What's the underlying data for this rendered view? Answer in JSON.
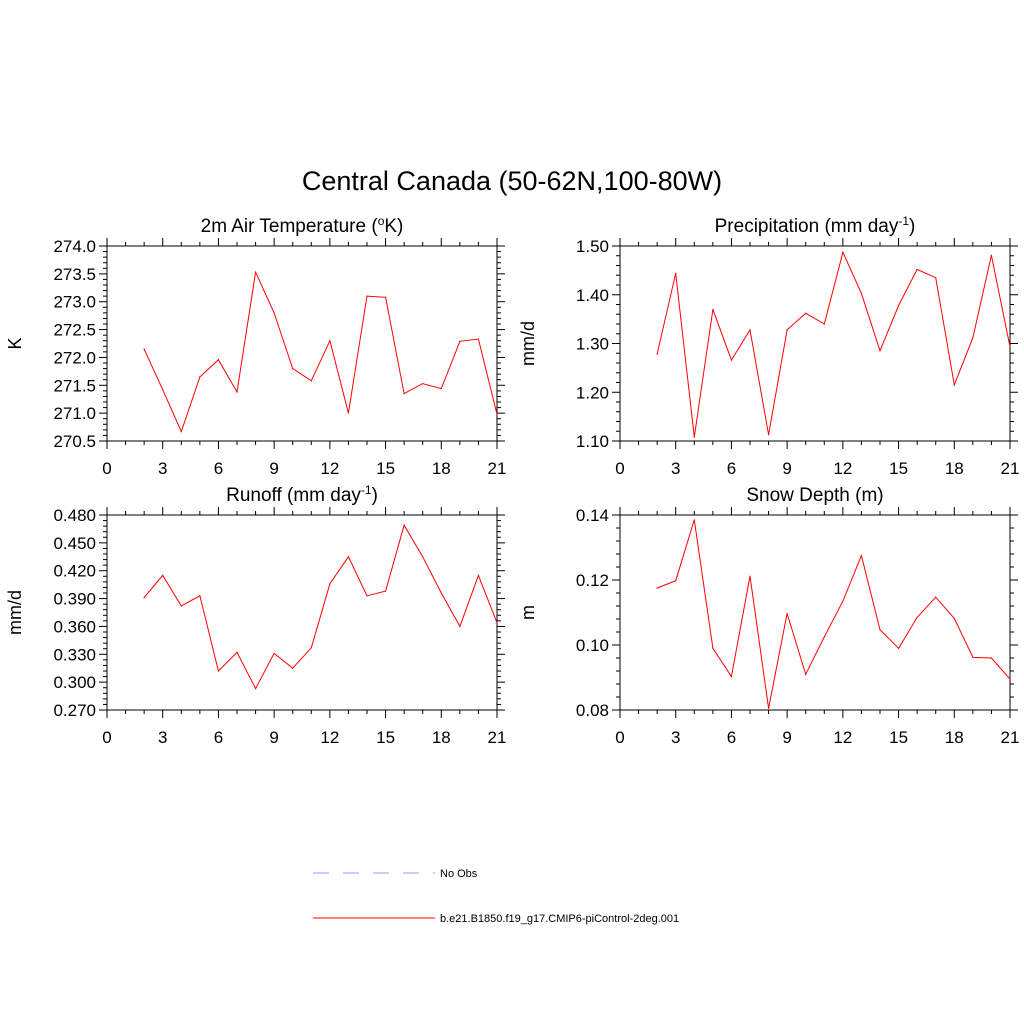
{
  "figure_title": "Central Canada (50-62N,100-80W)",
  "legend": [
    {
      "label": "No Obs",
      "color": "#9999ff",
      "style": "dashed"
    },
    {
      "label": "b.e21.B1850.f19_g17.CMIP6-piControl-2deg.001",
      "color": "#ff0000",
      "style": "solid"
    }
  ],
  "chart_data": [
    {
      "type": "line",
      "title_pre": "2m Air Temperature (",
      "title_sup": "o",
      "title_post": "K)",
      "ylabel": "K",
      "xlim": [
        0,
        21
      ],
      "ylim": [
        270.5,
        274.0
      ],
      "x_ticks": [
        "0",
        "3",
        "6",
        "9",
        "12",
        "15",
        "18",
        "21"
      ],
      "y_ticks": [
        "270.5",
        "271.0",
        "271.5",
        "272.0",
        "272.5",
        "273.0",
        "273.5",
        "274.0"
      ],
      "series": [
        {
          "name": "b.e21.B1850.f19_g17.CMIP6-piControl-2deg.001",
          "color": "#ff0000",
          "x": [
            2,
            3,
            4,
            5,
            6,
            7,
            8,
            9,
            10,
            11,
            12,
            13,
            14,
            15,
            16,
            17,
            18,
            19,
            20,
            21
          ],
          "values": [
            272.15,
            271.42,
            270.67,
            271.65,
            271.96,
            271.38,
            273.53,
            272.8,
            271.8,
            271.58,
            272.3,
            271.0,
            273.1,
            273.08,
            271.35,
            271.53,
            271.44,
            272.29,
            272.33,
            270.98
          ]
        }
      ]
    },
    {
      "type": "line",
      "title_pre": "Precipitation (mm day",
      "title_sup": "-1",
      "title_post": ")",
      "ylabel": "mm/d",
      "xlim": [
        0,
        21
      ],
      "ylim": [
        1.1,
        1.5
      ],
      "x_ticks": [
        "0",
        "3",
        "6",
        "9",
        "12",
        "15",
        "18",
        "21"
      ],
      "y_ticks": [
        "1.10",
        "1.20",
        "1.30",
        "1.40",
        "1.50"
      ],
      "series": [
        {
          "name": "b.e21.B1850.f19_g17.CMIP6-piControl-2deg.001",
          "color": "#ff0000",
          "x": [
            2,
            3,
            4,
            5,
            6,
            7,
            8,
            9,
            10,
            11,
            12,
            13,
            14,
            15,
            16,
            17,
            18,
            19,
            20,
            21
          ],
          "values": [
            1.278,
            1.444,
            1.108,
            1.37,
            1.266,
            1.328,
            1.113,
            1.328,
            1.362,
            1.34,
            1.487,
            1.403,
            1.285,
            1.378,
            1.452,
            1.435,
            1.215,
            1.312,
            1.481,
            1.293
          ]
        }
      ]
    },
    {
      "type": "line",
      "title_pre": "Runoff (mm day",
      "title_sup": "-1",
      "title_post": ")",
      "ylabel": "mm/d",
      "xlim": [
        0,
        21
      ],
      "ylim": [
        0.27,
        0.48
      ],
      "x_ticks": [
        "0",
        "3",
        "6",
        "9",
        "12",
        "15",
        "18",
        "21"
      ],
      "y_ticks": [
        "0.270",
        "0.300",
        "0.330",
        "0.360",
        "0.390",
        "0.420",
        "0.450",
        "0.480"
      ],
      "series": [
        {
          "name": "b.e21.B1850.f19_g17.CMIP6-piControl-2deg.001",
          "color": "#ff0000",
          "x": [
            2,
            3,
            4,
            5,
            6,
            7,
            8,
            9,
            10,
            11,
            12,
            13,
            14,
            15,
            16,
            17,
            18,
            19,
            20,
            21
          ],
          "values": [
            0.391,
            0.415,
            0.382,
            0.393,
            0.312,
            0.332,
            0.293,
            0.331,
            0.315,
            0.337,
            0.406,
            0.435,
            0.393,
            0.398,
            0.469,
            0.435,
            0.396,
            0.36,
            0.415,
            0.364
          ]
        }
      ]
    },
    {
      "type": "line",
      "title_pre": "Snow Depth (m)",
      "title_sup": "",
      "title_post": "",
      "ylabel": "m",
      "xlim": [
        0,
        21
      ],
      "ylim": [
        0.08,
        0.14
      ],
      "x_ticks": [
        "0",
        "3",
        "6",
        "9",
        "12",
        "15",
        "18",
        "21"
      ],
      "y_ticks": [
        "0.08",
        "0.10",
        "0.12",
        "0.14"
      ],
      "series": [
        {
          "name": "b.e21.B1850.f19_g17.CMIP6-piControl-2deg.001",
          "color": "#ff0000",
          "x": [
            2,
            3,
            4,
            5,
            6,
            7,
            8,
            9,
            10,
            11,
            12,
            13,
            14,
            15,
            16,
            17,
            18,
            19,
            20,
            21
          ],
          "values": [
            0.1175,
            0.1198,
            0.1385,
            0.099,
            0.0903,
            0.1212,
            0.0805,
            0.1097,
            0.091,
            0.1025,
            0.1135,
            0.1275,
            0.1047,
            0.099,
            0.1085,
            0.1147,
            0.1082,
            0.0962,
            0.096,
            0.0895
          ]
        }
      ]
    }
  ]
}
